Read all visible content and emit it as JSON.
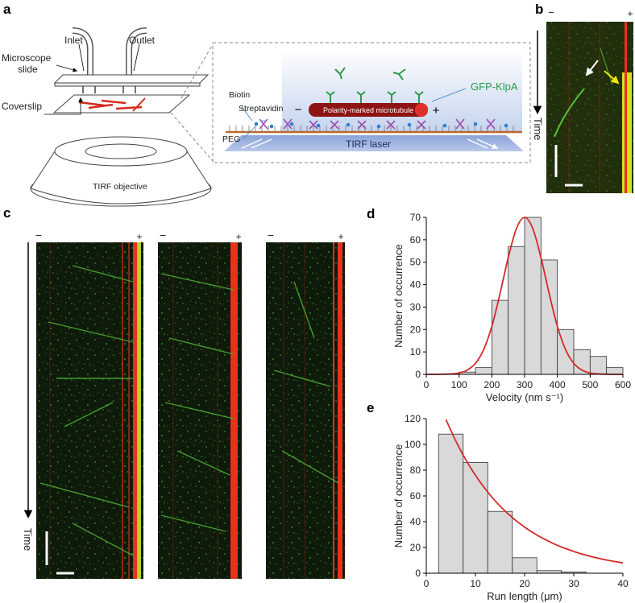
{
  "panel_labels": [
    "a",
    "b",
    "c",
    "d",
    "e"
  ],
  "diagram": {
    "inlet": "Inlet",
    "outlet": "Outlet",
    "microscope_slide": [
      "Microscope",
      "slide"
    ],
    "coverslip": "Coverslip",
    "tirf_objective": "TIRF objective",
    "biotin": "Biotin",
    "streptavidin": "Streptavidin",
    "peg": "PEG",
    "microtubule": "Polarity-marked microtubule",
    "minus": "−",
    "plus": "+",
    "gfp_klpa": "GFP-KlpA",
    "tirf_laser": "TIRF laser"
  },
  "kymograph_b": {
    "minus": "−",
    "plus": "+",
    "time": "Time"
  },
  "kymographs_c": {
    "time": "Time",
    "ends": [
      {
        "minus": "−",
        "plus": "+"
      },
      {
        "minus": "−",
        "plus": "+"
      },
      {
        "minus": "−",
        "plus": "+"
      }
    ]
  },
  "chart_data": [
    {
      "type": "histogram",
      "x_label": "Velocity (nm s⁻¹)",
      "y_label": "Number of occurrence",
      "bins": [
        100,
        150,
        200,
        250,
        300,
        350,
        400,
        450,
        500,
        550,
        600
      ],
      "values": [
        1,
        3,
        33,
        57,
        70,
        51,
        20,
        11,
        8,
        3
      ],
      "color": "#d9d9d9",
      "fit": {
        "x": [
          0,
          25,
          50,
          75,
          100,
          125,
          150,
          175,
          200,
          225,
          250,
          275,
          300,
          325,
          350,
          375,
          400,
          425,
          450,
          475,
          500,
          525,
          550,
          575,
          600
        ],
        "values": [
          0,
          0,
          0.05,
          0.2,
          0.6,
          1.9,
          4.9,
          11,
          21.4,
          36,
          52,
          65,
          70,
          65,
          52,
          36,
          21.4,
          11,
          4.9,
          1.9,
          0.6,
          0.2,
          0.05,
          0,
          0
        ],
        "color": "#d42a2a"
      },
      "xlim": [
        0,
        600
      ],
      "ylim": [
        0,
        70
      ],
      "xticks": [
        0,
        100,
        200,
        300,
        400,
        500,
        600
      ],
      "yticks": [
        0,
        10,
        20,
        30,
        40,
        50,
        60,
        70
      ]
    },
    {
      "type": "histogram",
      "x_label": "Run length (μm)",
      "y_label": "Number of occurrence",
      "bins": [
        2.5,
        7.5,
        12.5,
        17.5,
        22.5,
        27.5,
        32.5
      ],
      "values": [
        108,
        86,
        48,
        12,
        2,
        1
      ],
      "color": "#d9d9d9",
      "fit": {
        "x": [
          4,
          6,
          8,
          10,
          12,
          14,
          16,
          18,
          20,
          22,
          24,
          26,
          28,
          30,
          32,
          34,
          36,
          38,
          40
        ],
        "values": [
          119.3,
          102.7,
          88.3,
          76,
          65.4,
          56.2,
          48.4,
          41.6,
          35.8,
          30.8,
          26.5,
          22.8,
          19.6,
          16.9,
          14.5,
          12.5,
          10.8,
          9.3,
          8
        ],
        "color": "#d42a2a"
      },
      "xlim": [
        0,
        40
      ],
      "ylim": [
        0,
        120
      ],
      "xticks": [
        0,
        10,
        20,
        30,
        40
      ],
      "yticks": [
        0,
        20,
        40,
        60,
        80,
        100,
        120
      ]
    }
  ]
}
